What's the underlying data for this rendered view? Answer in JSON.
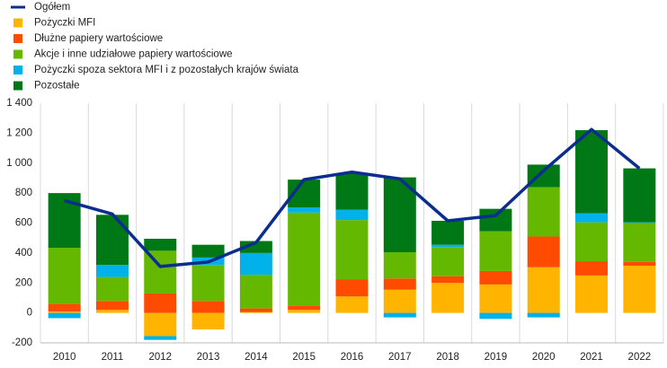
{
  "chart_data": {
    "type": "stacked-bar-line",
    "categories": [
      "2010",
      "2011",
      "2012",
      "2013",
      "2014",
      "2015",
      "2016",
      "2017",
      "2018",
      "2019",
      "2020",
      "2021",
      "2022"
    ],
    "series": [
      {
        "name": "Ogółem",
        "kind": "line",
        "color": "#0b2d8f",
        "values": [
          750,
          660,
          310,
          340,
          470,
          890,
          940,
          895,
          615,
          650,
          950,
          1225,
          965
        ]
      },
      {
        "name": "Pożyczki MFI",
        "kind": "bar",
        "color": "#ffb400",
        "values": [
          10,
          20,
          -155,
          -110,
          5,
          20,
          110,
          155,
          200,
          190,
          305,
          250,
          315
        ]
      },
      {
        "name": "Dłużne papiery wartościowe",
        "kind": "bar",
        "color": "#ff4b00",
        "values": [
          50,
          60,
          130,
          80,
          25,
          30,
          115,
          75,
          45,
          90,
          205,
          95,
          25
        ]
      },
      {
        "name": "Akcje i inne udziałowe papiery wartościowe",
        "kind": "bar",
        "color": "#65b800",
        "values": [
          375,
          160,
          285,
          240,
          225,
          620,
          395,
          175,
          195,
          265,
          330,
          260,
          260
        ]
      },
      {
        "name": "Pożyczki spoza sektora MFI i z pozostałych krajów świata",
        "kind": "bar",
        "color": "#00b1ea",
        "values": [
          -35,
          80,
          -25,
          50,
          145,
          35,
          70,
          -30,
          15,
          -40,
          -30,
          60,
          5
        ]
      },
      {
        "name": "Pozostałe",
        "kind": "bar",
        "color": "#007816",
        "values": [
          365,
          335,
          80,
          85,
          80,
          185,
          240,
          500,
          160,
          150,
          150,
          555,
          360
        ]
      }
    ],
    "ylim": [
      -200,
      1400
    ],
    "yticks": [
      {
        "value": -200,
        "label": "-200"
      },
      0,
      200,
      400,
      600,
      800,
      {
        "value": 1000,
        "label": "1 000"
      },
      {
        "value": 1200,
        "label": "1 200"
      },
      {
        "value": 1400,
        "label": "1 400"
      }
    ],
    "grid": false,
    "legend": "top-left"
  }
}
